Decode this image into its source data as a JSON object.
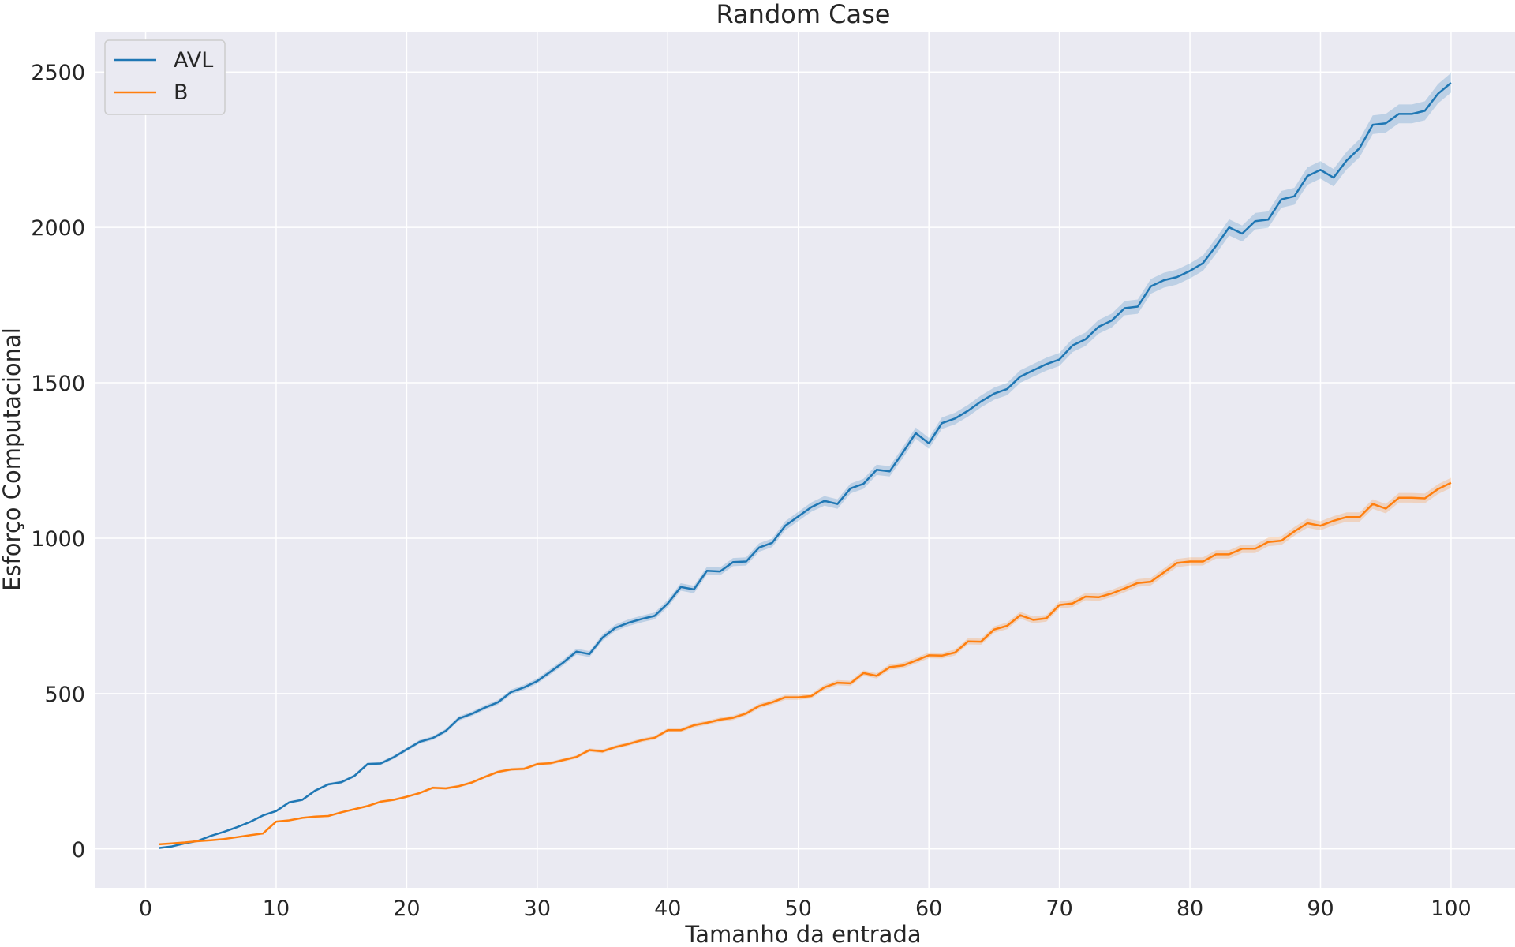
{
  "chart_data": {
    "type": "line",
    "title": "Random Case",
    "xlabel": "Tamanho da entrada",
    "ylabel": "Esforço Computacional",
    "xlim": [
      -3.9,
      104.9
    ],
    "ylim": [
      -125,
      2630
    ],
    "xticks": [
      0,
      10,
      20,
      30,
      40,
      50,
      60,
      70,
      80,
      90,
      100
    ],
    "yticks": [
      0,
      500,
      1000,
      1500,
      2000,
      2500
    ],
    "xtick_labels": [
      "0",
      "10",
      "20",
      "30",
      "40",
      "50",
      "60",
      "70",
      "80",
      "90",
      "100"
    ],
    "ytick_labels": [
      "0",
      "500",
      "1000",
      "1500",
      "2000",
      "2500"
    ],
    "grid": true,
    "background": "#eaeaf2",
    "legend_position": "top-left",
    "series": [
      {
        "name": "AVL",
        "color": "#1f77b4",
        "x": [
          1,
          2,
          3,
          4,
          5,
          6,
          7,
          8,
          9,
          10,
          11,
          12,
          13,
          14,
          15,
          16,
          17,
          18,
          19,
          20,
          21,
          22,
          23,
          24,
          25,
          26,
          27,
          28,
          29,
          30,
          31,
          32,
          33,
          34,
          35,
          36,
          37,
          38,
          39,
          40,
          41,
          42,
          43,
          44,
          45,
          46,
          47,
          48,
          49,
          50,
          51,
          52,
          53,
          54,
          55,
          56,
          57,
          58,
          59,
          60,
          61,
          62,
          63,
          64,
          65,
          66,
          67,
          68,
          69,
          70,
          71,
          72,
          73,
          74,
          75,
          76,
          77,
          78,
          79,
          80,
          81,
          82,
          83,
          84,
          85,
          86,
          87,
          88,
          89,
          90,
          91,
          92,
          93,
          94,
          95,
          96,
          97,
          98,
          99,
          100
        ],
        "values": [
          3,
          8,
          18,
          26,
          42,
          55,
          70,
          87,
          108,
          122,
          150,
          158,
          188,
          208,
          215,
          235,
          273,
          275,
          295,
          320,
          345,
          357,
          380,
          420,
          435,
          455,
          472,
          505,
          520,
          540,
          570,
          600,
          635,
          627,
          680,
          712,
          728,
          740,
          750,
          790,
          843,
          835,
          895,
          893,
          923,
          925,
          970,
          985,
          1040,
          1070,
          1100,
          1120,
          1110,
          1160,
          1175,
          1220,
          1215,
          1275,
          1338,
          1305,
          1370,
          1385,
          1410,
          1440,
          1465,
          1480,
          1520,
          1540,
          1560,
          1575,
          1620,
          1640,
          1680,
          1700,
          1740,
          1745,
          1810,
          1830,
          1840,
          1860,
          1885,
          1940,
          2000,
          1980,
          2020,
          2025,
          2090,
          2100,
          2165,
          2185,
          2160,
          2215,
          2255,
          2330,
          2335,
          2365,
          2365,
          2375,
          2430,
          2465
        ]
      },
      {
        "name": "B",
        "color": "#ff7f0e",
        "x": [
          1,
          2,
          3,
          4,
          5,
          6,
          7,
          8,
          9,
          10,
          11,
          12,
          13,
          14,
          15,
          16,
          17,
          18,
          19,
          20,
          21,
          22,
          23,
          24,
          25,
          26,
          27,
          28,
          29,
          30,
          31,
          32,
          33,
          34,
          35,
          36,
          37,
          38,
          39,
          40,
          41,
          42,
          43,
          44,
          45,
          46,
          47,
          48,
          49,
          50,
          51,
          52,
          53,
          54,
          55,
          56,
          57,
          58,
          59,
          60,
          61,
          62,
          63,
          64,
          65,
          66,
          67,
          68,
          69,
          70,
          71,
          72,
          73,
          74,
          75,
          76,
          77,
          78,
          79,
          80,
          81,
          82,
          83,
          84,
          85,
          86,
          87,
          88,
          89,
          90,
          91,
          92,
          93,
          94,
          95,
          96,
          97,
          98,
          99,
          100
        ],
        "values": [
          15,
          18,
          21,
          25,
          28,
          32,
          38,
          44,
          50,
          88,
          92,
          100,
          104,
          106,
          118,
          128,
          138,
          152,
          158,
          168,
          180,
          197,
          195,
          202,
          214,
          232,
          248,
          256,
          258,
          273,
          276,
          286,
          296,
          318,
          314,
          328,
          338,
          350,
          358,
          382,
          382,
          398,
          406,
          416,
          422,
          436,
          460,
          472,
          488,
          488,
          492,
          520,
          535,
          533,
          566,
          557,
          585,
          590,
          606,
          623,
          622,
          632,
          668,
          667,
          706,
          718,
          752,
          737,
          742,
          785,
          790,
          812,
          810,
          822,
          838,
          856,
          860,
          890,
          920,
          925,
          925,
          948,
          948,
          966,
          966,
          988,
          992,
          1022,
          1048,
          1040,
          1056,
          1068,
          1068,
          1110,
          1095,
          1130,
          1130,
          1128,
          1158,
          1178
        ]
      }
    ]
  }
}
